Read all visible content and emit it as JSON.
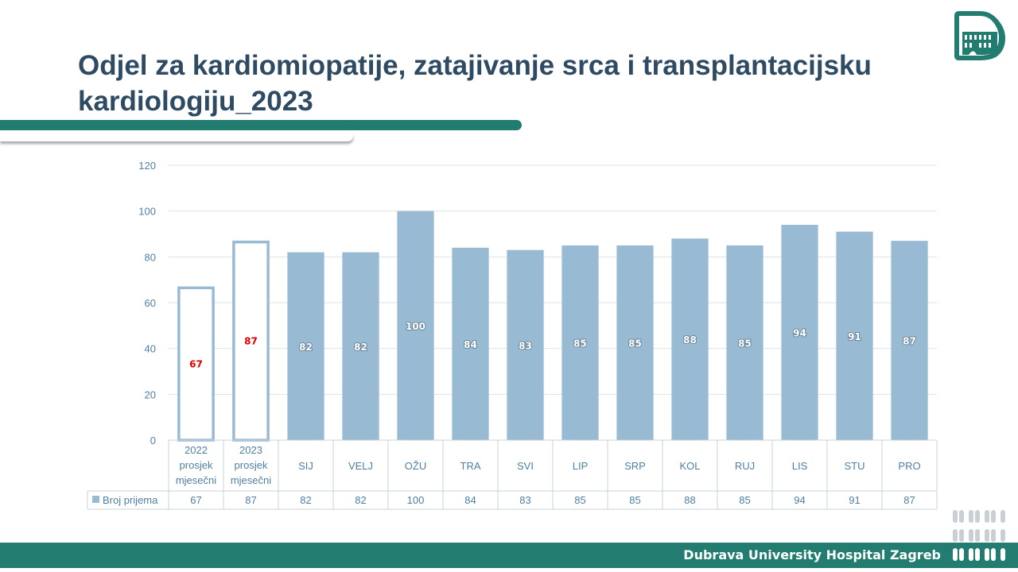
{
  "slide": {
    "title": "Odjel za kardiomiopatije, zatajivanje srca i transplantacijsku kardiologiju_2023",
    "footer": "Dubrava University Hospital Zagreb"
  },
  "colors": {
    "brand_green": "#227c70",
    "title": "#2e4b63",
    "bar_fill": "#98bbd3",
    "axis_text": "#4f7fa3",
    "highlight_label": "#e00000"
  },
  "icons": {
    "logo": "hospital-building-heart-icon",
    "decoration": "pill-dots-pattern"
  },
  "chart_data": {
    "type": "bar",
    "categories": [
      "2022 prosjek mjesečni",
      "2023 prosjek mjesečni",
      "SIJ",
      "VELJ",
      "OŽU",
      "TRA",
      "SVI",
      "LIP",
      "SRP",
      "KOL",
      "RUJ",
      "LIS",
      "STU",
      "PRO"
    ],
    "category_lines": [
      [
        "2022",
        "prosjek",
        "mjesečni"
      ],
      [
        "2023",
        "prosjek",
        "mjesečni"
      ],
      [
        "SIJ"
      ],
      [
        "VELJ"
      ],
      [
        "OŽU"
      ],
      [
        "TRA"
      ],
      [
        "SVI"
      ],
      [
        "LIP"
      ],
      [
        "SRP"
      ],
      [
        "KOL"
      ],
      [
        "RUJ"
      ],
      [
        "LIS"
      ],
      [
        "STU"
      ],
      [
        "PRO"
      ]
    ],
    "series": [
      {
        "name": "Broj prijema",
        "values": [
          67,
          87,
          82,
          82,
          100,
          84,
          83,
          85,
          85,
          88,
          85,
          94,
          91,
          87
        ]
      }
    ],
    "outlined_bars": [
      0,
      1
    ],
    "ylim": [
      0,
      120
    ],
    "yticks": [
      0,
      20,
      40,
      60,
      80,
      100,
      120
    ],
    "grid": true,
    "data_table": true,
    "legend": "data-table"
  }
}
